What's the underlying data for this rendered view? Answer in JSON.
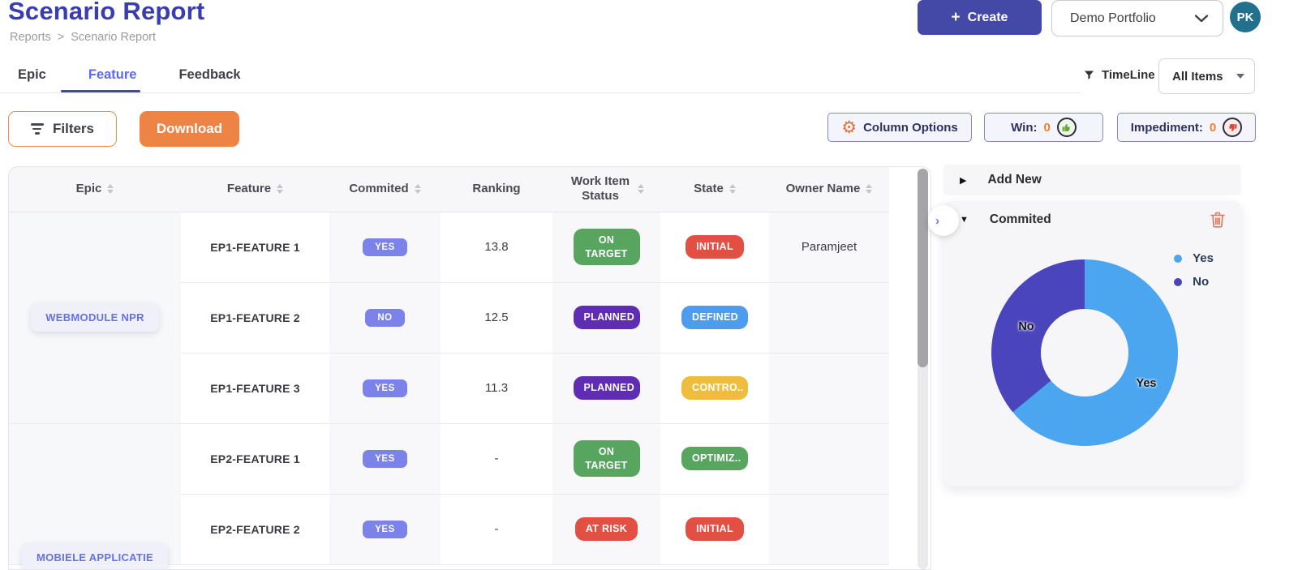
{
  "header": {
    "title": "Scenario Report",
    "breadcrumb": {
      "parent": "Reports",
      "separator": ">",
      "current": "Scenario Report"
    },
    "create": {
      "icon": "+",
      "label": "Create"
    },
    "portfolio_value": "Demo Portfolio",
    "avatar_initials": "PK"
  },
  "tabs": [
    {
      "label": "Epic",
      "active": false
    },
    {
      "label": "Feature",
      "active": true
    },
    {
      "label": "Feedback",
      "active": false
    }
  ],
  "timeline": {
    "label": "TimeLine",
    "filter_value": "All Items"
  },
  "toolbar": {
    "filters_label": "Filters",
    "download_label": "Download",
    "column_options_label": "Column Options",
    "win_label": "Win:",
    "win_count": "0",
    "impediment_label": "Impediment:",
    "impediment_count": "0"
  },
  "table": {
    "columns": [
      {
        "label": "Epic",
        "sortable": true
      },
      {
        "label": "Feature",
        "sortable": true
      },
      {
        "label": "Commited",
        "sortable": true
      },
      {
        "label": "Ranking",
        "sortable": false
      },
      {
        "label": "Work Item Status",
        "sortable": true
      },
      {
        "label": "State",
        "sortable": true
      },
      {
        "label": "Owner Name",
        "sortable": true
      }
    ],
    "groups": [
      {
        "epic": "WEBMODULE NPR",
        "rows": [
          {
            "feature": "EP1-FEATURE 1",
            "commited": "YES",
            "ranking": "13.8",
            "status": "ON TARGET",
            "state": "INITIAL",
            "owner": "Paramjeet"
          },
          {
            "feature": "EP1-FEATURE 2",
            "commited": "NO",
            "ranking": "12.5",
            "status": "PLANNED",
            "state": "DEFINED",
            "owner": ""
          },
          {
            "feature": "EP1-FEATURE 3",
            "commited": "YES",
            "ranking": "11.3",
            "status": "PLANNED",
            "state": "CONTRO..",
            "owner": ""
          }
        ]
      },
      {
        "epic": "MOBIELE APPLICATIE",
        "rows": [
          {
            "feature": "EP2-FEATURE 1",
            "commited": "YES",
            "ranking": "-",
            "status": "ON TARGET",
            "state": "OPTIMIZ..",
            "owner": ""
          },
          {
            "feature": "EP2-FEATURE 2",
            "commited": "YES",
            "ranking": "-",
            "status": "AT RISK",
            "state": "INITIAL",
            "owner": ""
          }
        ]
      }
    ]
  },
  "badge_colors": {
    "commited": "#7b83ea",
    "ON TARGET": "#57a55e",
    "PLANNED": "#5f2db4",
    "AT RISK": "#e25044",
    "INITIAL": "#e25044",
    "DEFINED": "#4d9ced",
    "CONTRO..": "#eebd3e",
    "OPTIMIZ..": "#57a55e"
  },
  "panel": {
    "add_new_label": "Add New",
    "widget_title": "Commited"
  },
  "chart_data": {
    "type": "pie",
    "donut": true,
    "title": "Commited",
    "labels": [
      "Yes",
      "No"
    ],
    "values": [
      64,
      36
    ],
    "colors": [
      "#4ca5ef",
      "#4a44bd"
    ],
    "legend_position": "top-right"
  },
  "colors": {
    "accent_indigo": "#4449a8",
    "accent_orange": "#ed8344",
    "active_tab": "#5d6af0",
    "title": "#3a3db2",
    "avatar_bg": "#20708e",
    "commit_pill": "#7b83ea"
  }
}
